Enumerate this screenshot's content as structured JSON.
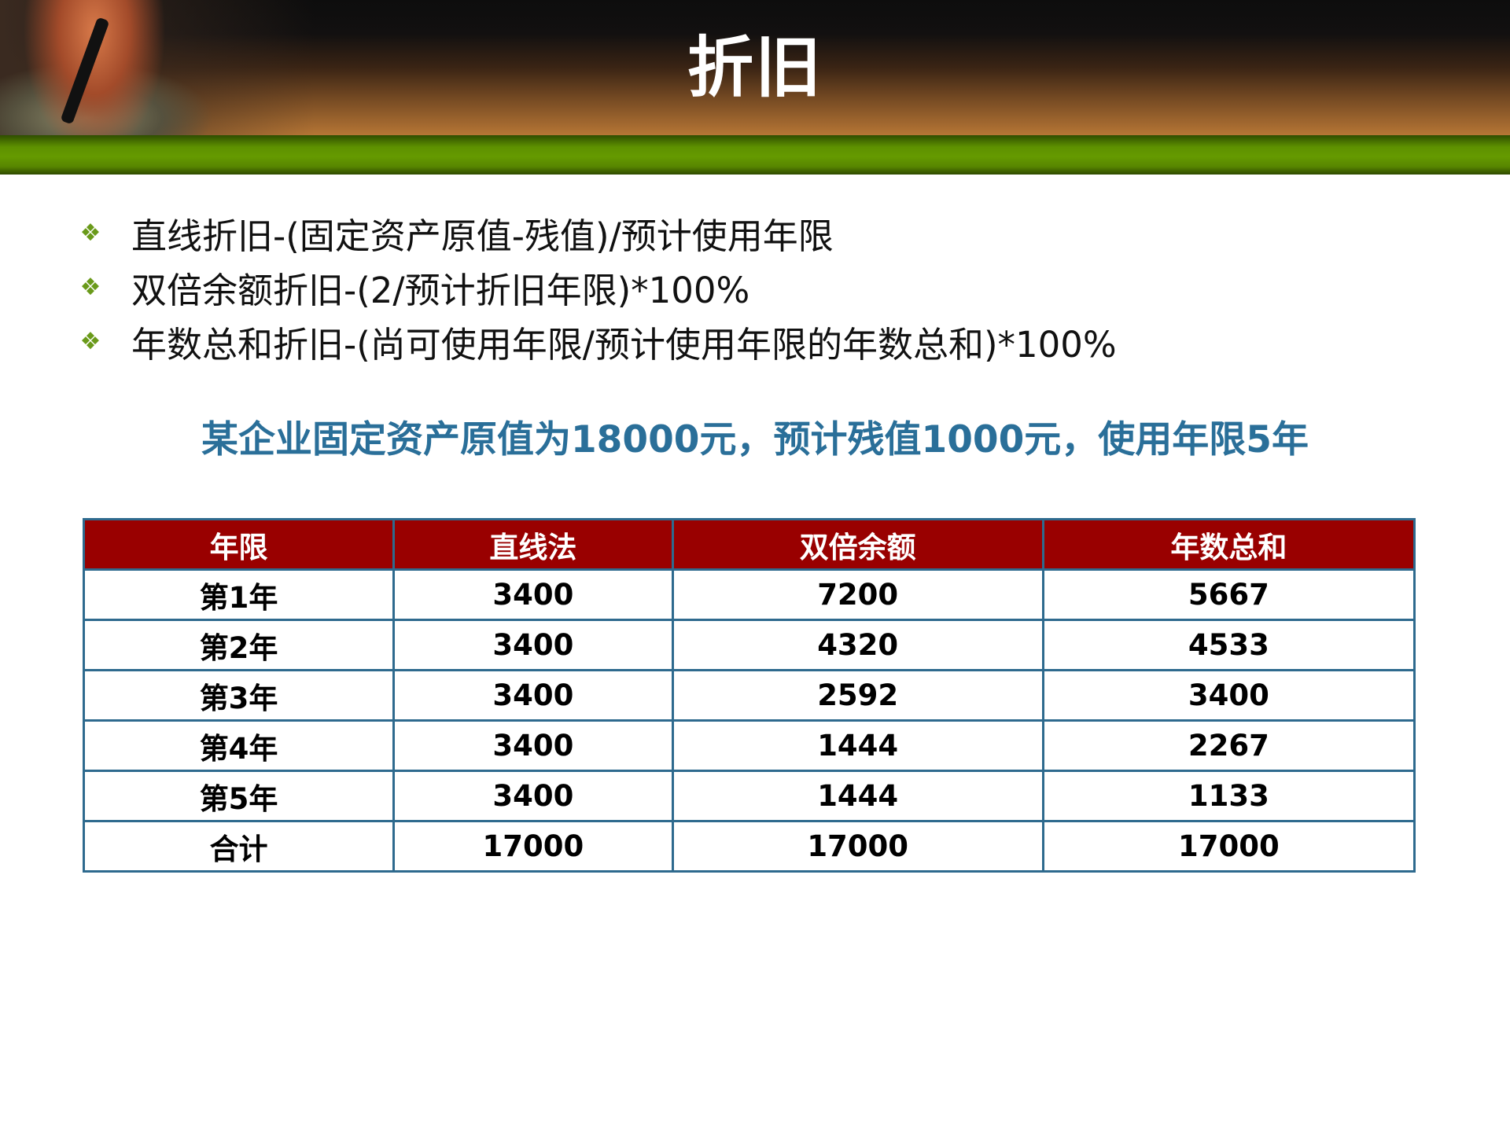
{
  "title": "折旧",
  "bullets": [
    "直线折旧-(固定资产原值-残值)/预计使用年限",
    "双倍余额折旧-(2/预计折旧年限)*100%",
    "年数总和折旧-(尚可使用年限/预计使用年限的年数总和)*100%"
  ],
  "bullet_icon": "four-diamond-icon",
  "example": "某企业固定资产原值为18000元，预计残值1000元，使用年限5年",
  "table": {
    "headers": [
      "年限",
      "直线法",
      "双倍余额",
      "年数总和"
    ],
    "rows": [
      [
        "第1年",
        "3400",
        "7200",
        "5667"
      ],
      [
        "第2年",
        "3400",
        "4320",
        "4533"
      ],
      [
        "第3年",
        "3400",
        "2592",
        "3400"
      ],
      [
        "第4年",
        "3400",
        "1444",
        "2267"
      ],
      [
        "第5年",
        "3400",
        "1444",
        "1133"
      ],
      [
        "合计",
        "17000",
        "17000",
        "17000"
      ]
    ]
  },
  "colors": {
    "header_red": "#990000",
    "accent_blue": "#2a6f99",
    "bar_green": "#659a00",
    "border": "#2e6a8e"
  }
}
